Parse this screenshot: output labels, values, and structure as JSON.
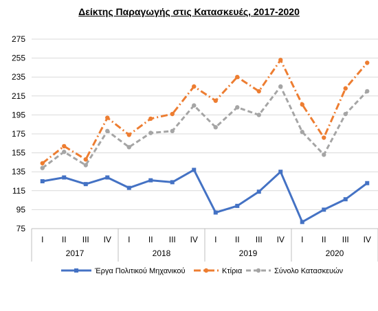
{
  "chart_data": {
    "type": "line",
    "title": "Δείκτης Παραγωγής στις Κατασκευές, 2017-2020",
    "categories": [
      "I",
      "II",
      "III",
      "IV",
      "I",
      "II",
      "III",
      "IV",
      "I",
      "II",
      "III",
      "IV",
      "I",
      "II",
      "III",
      "IV"
    ],
    "years": [
      "2017",
      "2018",
      "2019",
      "2020"
    ],
    "ylim": [
      75,
      275
    ],
    "yticks": [
      75,
      95,
      115,
      135,
      155,
      175,
      195,
      215,
      235,
      255,
      275
    ],
    "grid": true,
    "legend_position": "bottom",
    "series": [
      {
        "name": "Έργα Πολιτικού Μηχανικού",
        "color": "#4472C4",
        "style": "solid",
        "values": [
          125,
          129,
          122,
          129,
          118,
          126,
          124,
          137,
          92,
          99,
          114,
          135,
          82,
          95,
          106,
          123
        ]
      },
      {
        "name": "Κτίρια",
        "color": "#ED7D31",
        "style": "dashdot",
        "values": [
          144,
          162,
          148,
          192,
          174,
          191,
          196,
          225,
          210,
          235,
          220,
          253,
          206,
          171,
          223,
          250
        ]
      },
      {
        "name": "Σύνολο Κατασκευών",
        "color": "#A5A5A5",
        "style": "dash",
        "values": [
          139,
          156,
          142,
          178,
          161,
          176,
          178,
          205,
          182,
          203,
          195,
          225,
          177,
          153,
          196,
          220
        ]
      }
    ]
  }
}
